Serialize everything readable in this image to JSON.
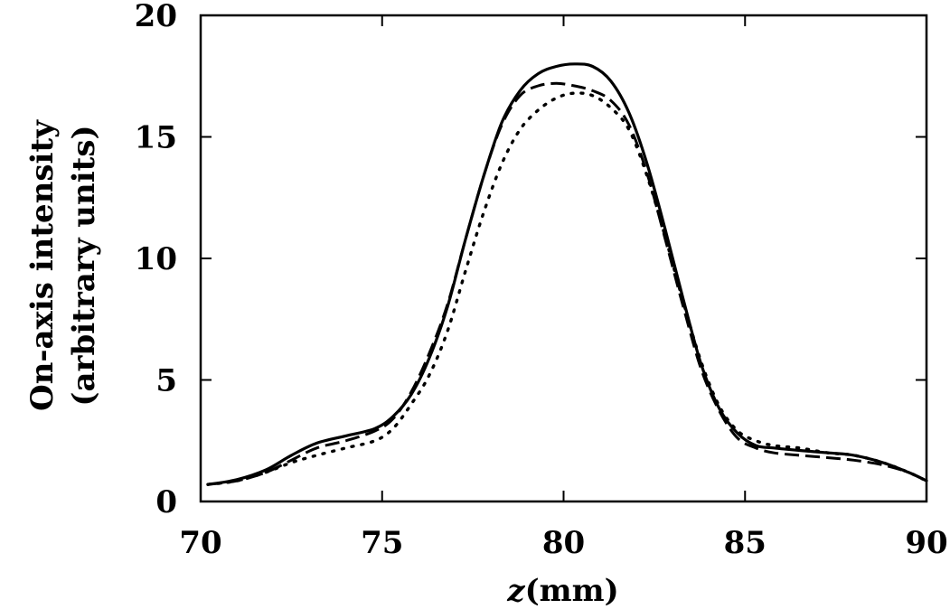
{
  "chart_data": {
    "type": "line",
    "title": "",
    "xlabel_var": "z",
    "xlabel_unit": "(mm)",
    "ylabel_lines": [
      "On-axis intensity",
      "(arbitrary units)"
    ],
    "xlim": [
      70,
      90
    ],
    "ylim": [
      0,
      20
    ],
    "xticks": [
      70,
      75,
      80,
      85,
      90
    ],
    "yticks": [
      0,
      5,
      10,
      15,
      20
    ],
    "grid": false,
    "series": [
      {
        "style": "solid",
        "x": [
          70.2,
          71,
          71.8,
          72.5,
          73.2,
          74,
          74.8,
          75.3,
          75.8,
          76.3,
          76.8,
          77.3,
          77.8,
          78.3,
          78.8,
          79.3,
          79.8,
          80.3,
          80.8,
          81.3,
          81.8,
          82.3,
          82.8,
          83.3,
          83.8,
          84.3,
          84.8,
          85.3,
          85.8,
          86.5,
          87.3,
          88,
          88.8,
          89.5,
          90
        ],
        "y": [
          0.7,
          0.9,
          1.3,
          1.9,
          2.4,
          2.7,
          3.0,
          3.5,
          4.4,
          5.9,
          8.0,
          10.8,
          13.4,
          15.6,
          16.9,
          17.6,
          17.9,
          18.0,
          17.9,
          17.3,
          16.0,
          13.9,
          11.2,
          8.3,
          5.6,
          3.8,
          2.8,
          2.3,
          2.2,
          2.1,
          2.0,
          1.9,
          1.6,
          1.2,
          0.85
        ]
      },
      {
        "style": "dashed",
        "x": [
          70.2,
          71,
          71.8,
          72.5,
          73.2,
          74,
          74.8,
          75.3,
          75.8,
          76.3,
          76.8,
          77.3,
          77.8,
          78.3,
          78.8,
          79.3,
          79.8,
          80.3,
          80.8,
          81.3,
          81.8,
          82.3,
          82.8,
          83.3,
          83.8,
          84.3,
          84.8,
          85.3,
          85.8,
          86.5,
          87.3,
          88,
          88.8,
          89.5,
          90
        ],
        "y": [
          0.7,
          0.85,
          1.2,
          1.7,
          2.2,
          2.5,
          2.9,
          3.4,
          4.5,
          6.1,
          8.1,
          10.8,
          13.4,
          15.5,
          16.7,
          17.1,
          17.2,
          17.1,
          16.9,
          16.5,
          15.5,
          13.5,
          10.8,
          8.0,
          5.4,
          3.7,
          2.6,
          2.2,
          2.0,
          1.9,
          1.8,
          1.7,
          1.5,
          1.2,
          0.85
        ]
      },
      {
        "style": "dotted",
        "x": [
          70.2,
          71,
          71.8,
          72.5,
          73.2,
          74,
          74.8,
          75.3,
          75.8,
          76.3,
          76.8,
          77.3,
          77.8,
          78.3,
          78.8,
          79.3,
          79.8,
          80.3,
          80.8,
          81.3,
          81.8,
          82.3,
          82.8,
          83.3,
          83.8,
          84.3,
          84.8,
          85.3,
          85.8,
          86.5,
          87.3,
          88,
          88.8,
          89.5,
          90
        ],
        "y": [
          0.7,
          0.85,
          1.2,
          1.6,
          1.9,
          2.2,
          2.5,
          3.0,
          4.0,
          5.2,
          7.0,
          9.5,
          11.9,
          13.9,
          15.3,
          16.1,
          16.6,
          16.8,
          16.7,
          16.2,
          15.3,
          13.4,
          10.9,
          8.2,
          5.7,
          3.9,
          2.9,
          2.5,
          2.3,
          2.2,
          2.0,
          1.9,
          1.6,
          1.2,
          0.85
        ]
      }
    ]
  }
}
